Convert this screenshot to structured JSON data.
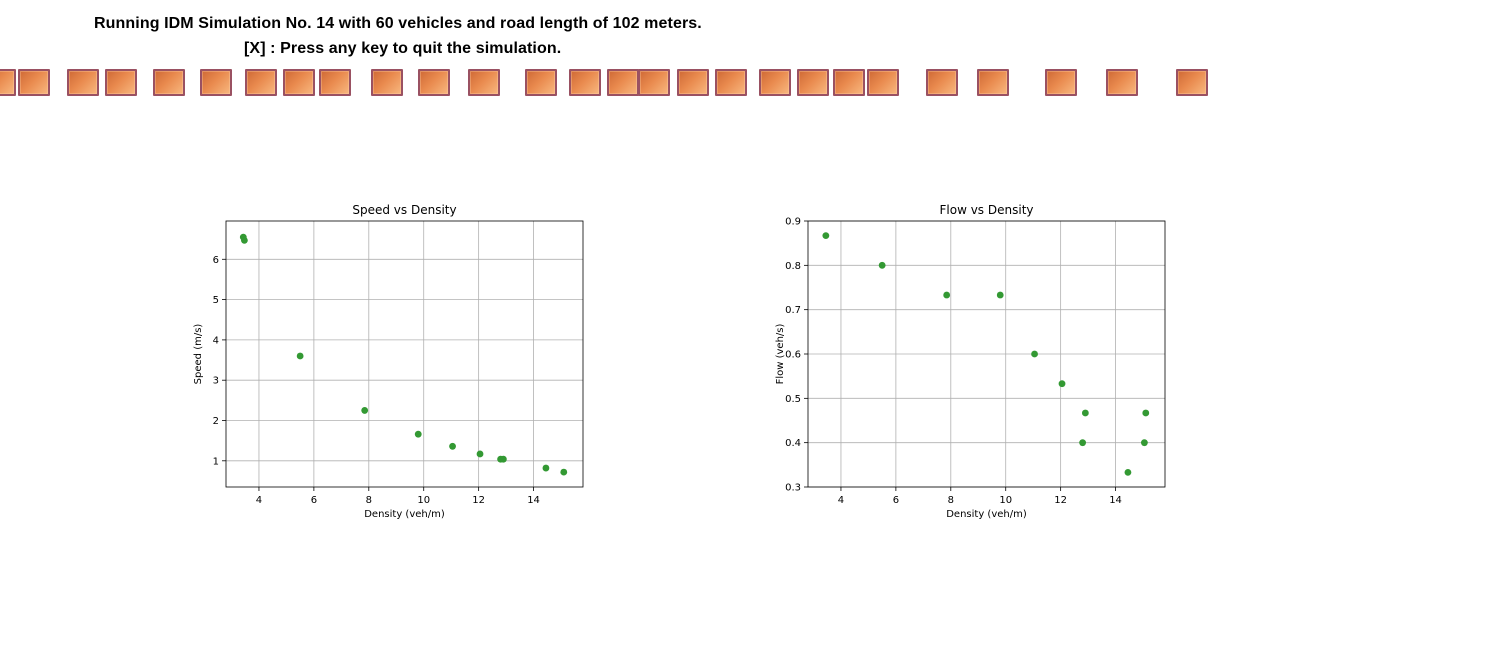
{
  "header": {
    "line1": "Running IDM Simulation No. 14 with 60 vehicles and road length of 102 meters.",
    "line2": "[X] : Press any key to quit the simulation."
  },
  "road": {
    "vehicle_icon": "car-square-icon",
    "colors": {
      "fill_dark": "#cf6a36",
      "fill_light": "#f8b880",
      "border": "#9a5162"
    }
  },
  "colors": {
    "point": "#339933",
    "grid": "#b0b0b0",
    "axes": "#000000"
  },
  "chart_data": [
    {
      "type": "scatter",
      "title": "Speed vs Density",
      "xlabel": "Density (veh/m)",
      "ylabel": "Speed (m/s)",
      "xlim": [
        2.8,
        15.8
      ],
      "ylim": [
        0.35,
        6.95
      ],
      "xticks": [
        4,
        6,
        8,
        10,
        12,
        14
      ],
      "yticks": [
        1,
        2,
        3,
        4,
        5,
        6
      ],
      "grid": true,
      "points": [
        [
          3.43,
          6.55
        ],
        [
          3.47,
          6.47
        ],
        [
          5.5,
          3.6
        ],
        [
          7.85,
          2.25
        ],
        [
          9.8,
          1.66
        ],
        [
          11.05,
          1.36
        ],
        [
          12.05,
          1.17
        ],
        [
          12.8,
          1.04
        ],
        [
          12.9,
          1.04
        ],
        [
          14.45,
          0.82
        ],
        [
          15.1,
          0.72
        ]
      ]
    },
    {
      "type": "scatter",
      "title": "Flow vs Density",
      "xlabel": "Density (veh/m)",
      "ylabel": "Flow (veh/s)",
      "xlim": [
        2.8,
        15.8
      ],
      "ylim": [
        0.3,
        0.9
      ],
      "xticks": [
        4,
        6,
        8,
        10,
        12,
        14
      ],
      "yticks": [
        0.3,
        0.4,
        0.5,
        0.6,
        0.7,
        0.8,
        0.9
      ],
      "grid": true,
      "points": [
        [
          3.45,
          0.867
        ],
        [
          5.5,
          0.8
        ],
        [
          7.85,
          0.733
        ],
        [
          9.8,
          0.733
        ],
        [
          11.05,
          0.6
        ],
        [
          12.05,
          0.533
        ],
        [
          12.8,
          0.4
        ],
        [
          12.9,
          0.467
        ],
        [
          14.45,
          0.333
        ],
        [
          15.1,
          0.467
        ],
        [
          15.05,
          0.4
        ]
      ]
    }
  ]
}
